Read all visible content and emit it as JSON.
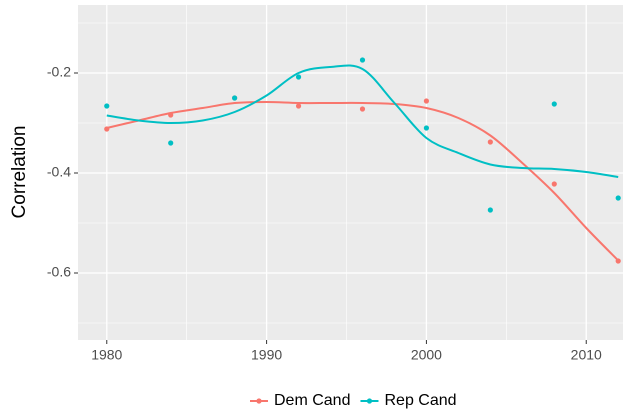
{
  "chart_data": {
    "type": "scatter-smooth",
    "y_label": "Correlation",
    "x": [
      1980,
      1984,
      1988,
      1992,
      1996,
      2000,
      2004,
      2008,
      2012
    ],
    "smooth_x": [
      1980,
      1982,
      1984,
      1986,
      1988,
      1990,
      1992,
      1994,
      1996,
      1998,
      2000,
      2002,
      2004,
      2006,
      2008,
      2010,
      2012
    ],
    "series": [
      {
        "name": "Dem Cand",
        "color": "#F8766D",
        "values": [
          -0.312,
          -0.284,
          -0.25,
          -0.266,
          -0.272,
          -0.256,
          -0.338,
          -0.422,
          -0.576
        ],
        "smooth": [
          -0.31,
          -0.295,
          -0.28,
          -0.27,
          -0.26,
          -0.258,
          -0.26,
          -0.26,
          -0.26,
          -0.262,
          -0.27,
          -0.29,
          -0.325,
          -0.38,
          -0.44,
          -0.51,
          -0.575
        ]
      },
      {
        "name": "Rep Cand",
        "color": "#00BFC4",
        "values": [
          -0.266,
          -0.34,
          -0.25,
          -0.208,
          -0.174,
          -0.31,
          -0.474,
          -0.262,
          -0.45
        ],
        "smooth": [
          -0.285,
          -0.295,
          -0.3,
          -0.295,
          -0.278,
          -0.245,
          -0.2,
          -0.188,
          -0.192,
          -0.26,
          -0.33,
          -0.36,
          -0.383,
          -0.39,
          -0.392,
          -0.398,
          -0.408
        ]
      }
    ],
    "xlim": [
      1978.2,
      2012.3
    ],
    "ylim": [
      -0.734,
      -0.064
    ],
    "xticks": [
      1980,
      1990,
      2000,
      2010
    ],
    "yticks": [
      -0.2,
      -0.4,
      -0.6
    ],
    "xminor": [
      1985,
      1995,
      2005
    ],
    "yminor": [
      -0.1,
      -0.3,
      -0.5,
      -0.7
    ],
    "grid": true,
    "legend_position": "bottom"
  }
}
